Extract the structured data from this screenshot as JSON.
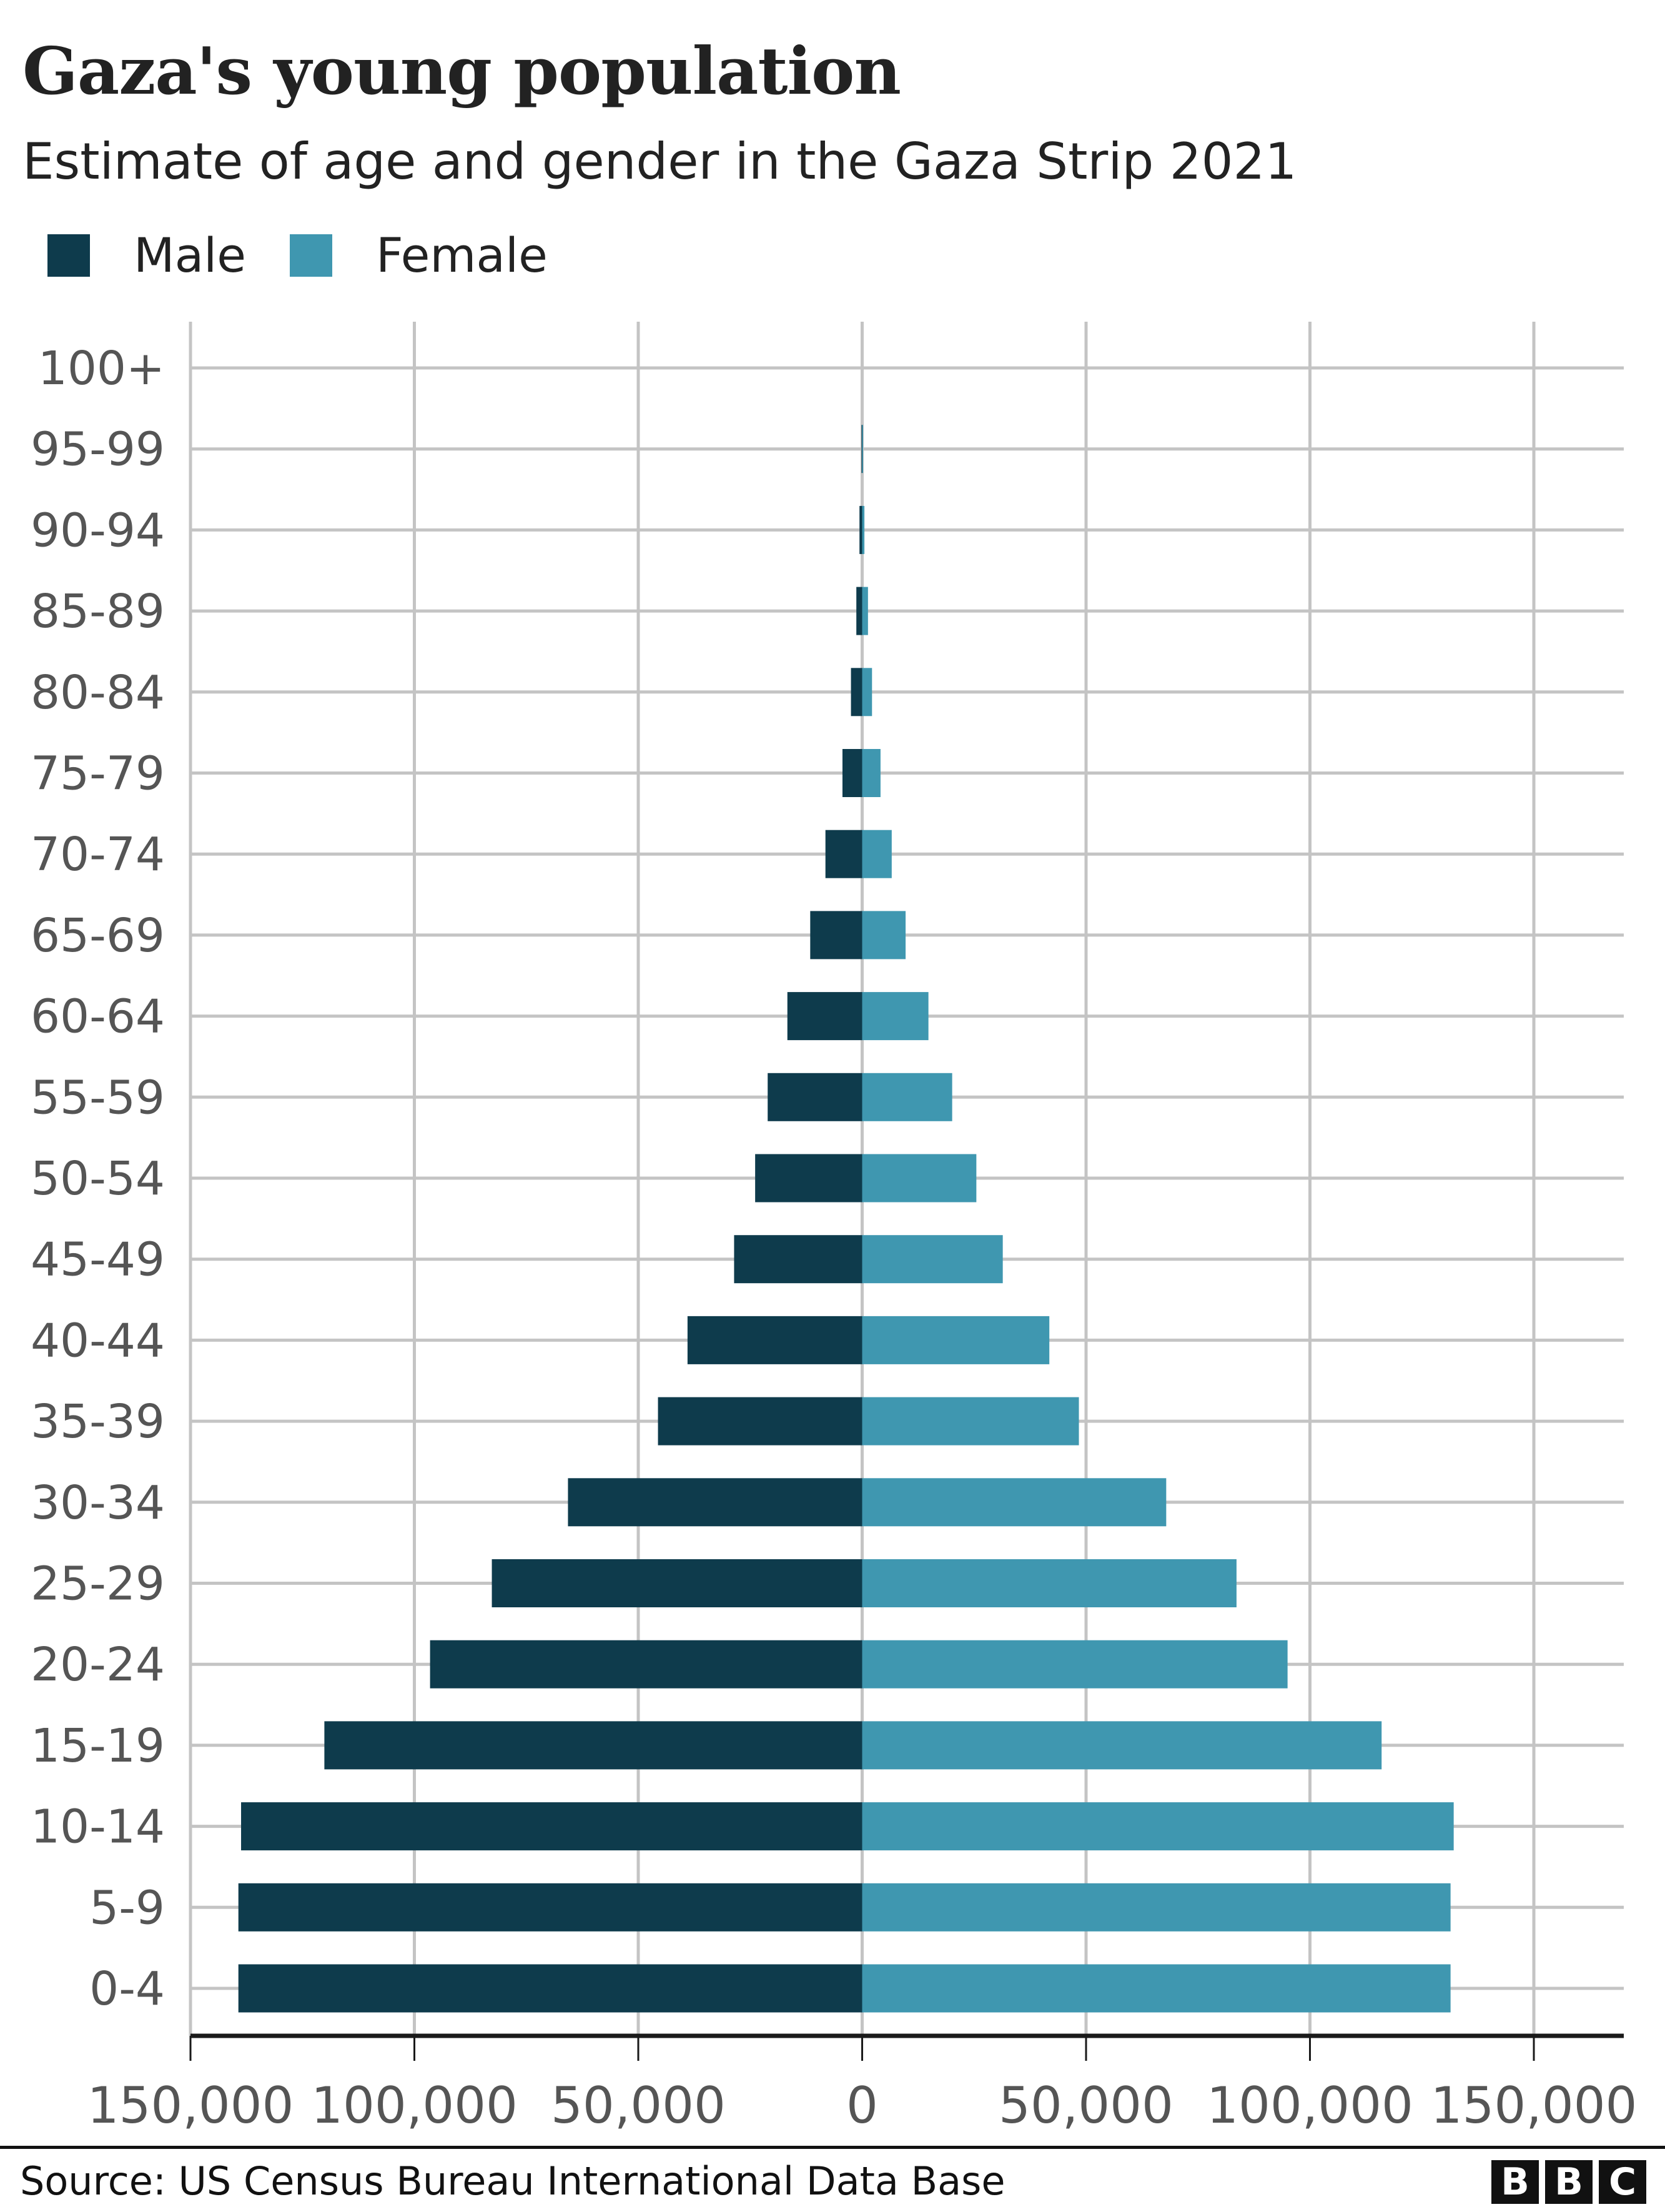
{
  "chart_data": {
    "type": "bar",
    "orientation": "horizontal",
    "layout": "population-pyramid",
    "title": "Gaza's young population",
    "subtitle": "Estimate of age and gender in the Gaza Strip 2021",
    "categories": [
      "100+",
      "95-99",
      "90-94",
      "85-89",
      "80-84",
      "75-79",
      "70-74",
      "65-69",
      "60-64",
      "55-59",
      "50-54",
      "45-49",
      "40-44",
      "35-39",
      "30-34",
      "25-29",
      "20-24",
      "15-19",
      "10-14",
      "5-9",
      "0-4"
    ],
    "series": [
      {
        "name": "Male",
        "color": "#0e3b4c",
        "values": [
          0,
          150,
          600,
          1300,
          2500,
          4400,
          8200,
          11600,
          16700,
          21100,
          23900,
          28600,
          39000,
          45600,
          65700,
          82700,
          96500,
          120100,
          138700,
          139300,
          139300
        ]
      },
      {
        "name": "Female",
        "color": "#3f97b0",
        "values": [
          0,
          200,
          500,
          1300,
          2200,
          4100,
          6600,
          9700,
          14800,
          20100,
          25500,
          31400,
          41800,
          48400,
          67900,
          83600,
          95000,
          116000,
          132100,
          131400,
          131400
        ]
      }
    ],
    "xlim": [
      -150000,
      150000
    ],
    "xticks": [
      -150000,
      -100000,
      -50000,
      0,
      50000,
      100000,
      150000
    ],
    "xtick_labels": [
      "150,000",
      "100,000",
      "50,000",
      "0",
      "50,000",
      "100,000",
      "150,000"
    ],
    "grid": true,
    "legend_position": "top-left",
    "xlabel": "",
    "ylabel": ""
  },
  "legend": {
    "male": "Male",
    "female": "Female"
  },
  "footer": {
    "source": "Source: US Census Bureau International Data Base",
    "logo": "BBC"
  }
}
